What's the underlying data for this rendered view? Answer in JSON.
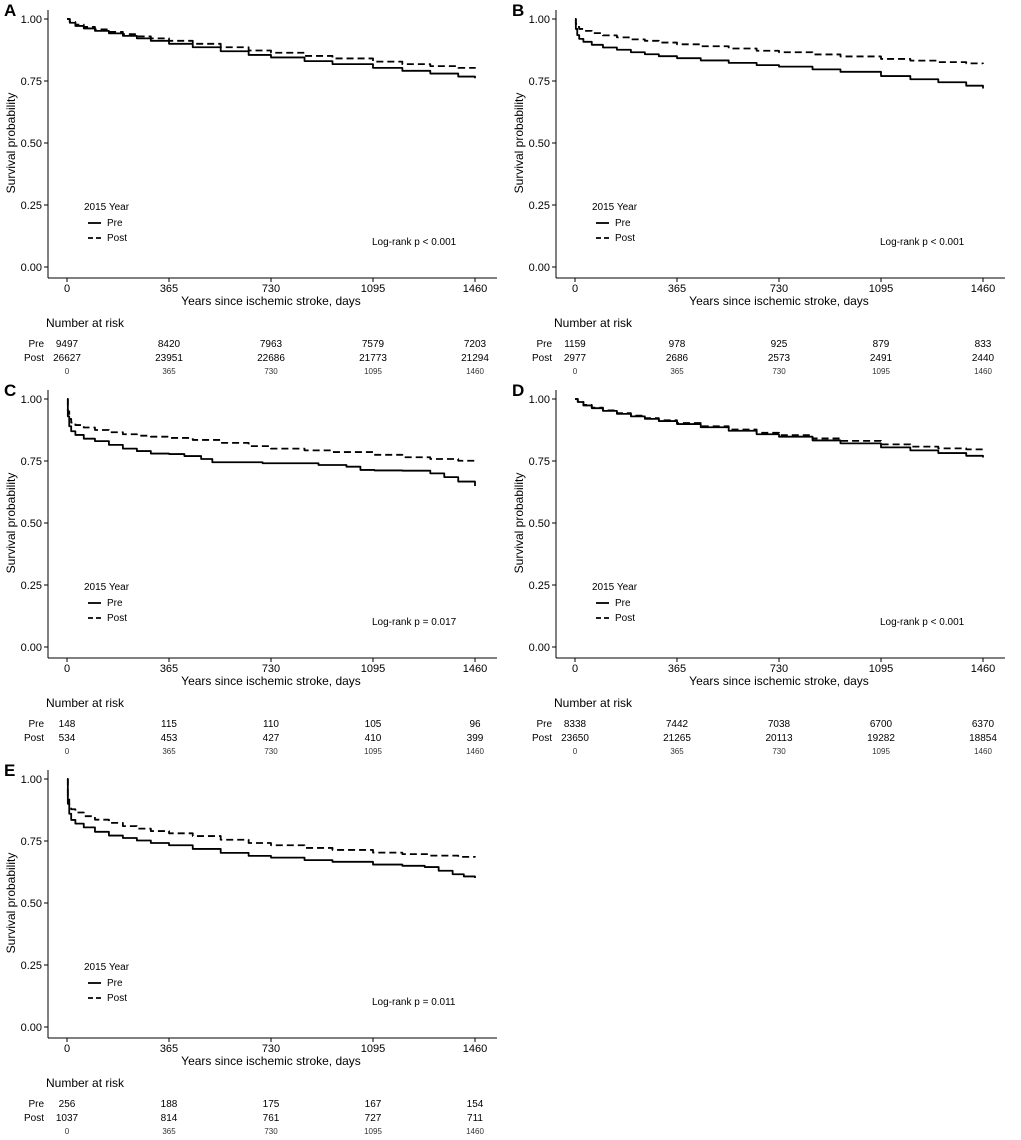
{
  "chart_data": [
    {
      "panel": "A",
      "type": "line",
      "ylabel": "Survival probability",
      "xlabel": "Years since ischemic stroke, days",
      "x_ticks": [
        "0",
        "365",
        "730",
        "1095",
        "1460"
      ],
      "y_ticks": [
        "0.00",
        "0.25",
        "0.50",
        "0.75",
        "1.00"
      ],
      "xlim": [
        0,
        1460
      ],
      "ylim": [
        0,
        1
      ],
      "legend_title": "2015 Year",
      "annotation": "Log-rank p < 0.001",
      "series": [
        {
          "name": "Pre",
          "style": "solid",
          "x": [
            0,
            10,
            30,
            60,
            100,
            150,
            200,
            250,
            300,
            365,
            450,
            550,
            650,
            730,
            850,
            950,
            1095,
            1200,
            1300,
            1400,
            1460
          ],
          "y": [
            1.0,
            0.985,
            0.972,
            0.962,
            0.952,
            0.942,
            0.932,
            0.922,
            0.912,
            0.9,
            0.886,
            0.87,
            0.855,
            0.845,
            0.83,
            0.818,
            0.803,
            0.791,
            0.78,
            0.768,
            0.761
          ]
        },
        {
          "name": "Post",
          "style": "dashed",
          "x": [
            0,
            10,
            30,
            60,
            100,
            150,
            200,
            250,
            300,
            365,
            450,
            550,
            650,
            730,
            850,
            950,
            1095,
            1200,
            1300,
            1400,
            1460
          ],
          "y": [
            1.0,
            0.988,
            0.977,
            0.968,
            0.958,
            0.948,
            0.939,
            0.93,
            0.922,
            0.912,
            0.9,
            0.886,
            0.873,
            0.864,
            0.851,
            0.841,
            0.828,
            0.818,
            0.81,
            0.803,
            0.8
          ]
        }
      ],
      "risk_table": {
        "title": "Number at risk",
        "row_labels": [
          "Pre",
          "Post"
        ],
        "rows": [
          [
            "9497",
            "8420",
            "7963",
            "7579",
            "7203"
          ],
          [
            "26627",
            "23951",
            "22686",
            "21773",
            "21294"
          ]
        ],
        "times": [
          "0",
          "365",
          "730",
          "1095",
          "1460"
        ]
      }
    },
    {
      "panel": "B",
      "type": "line",
      "ylabel": "Survival probability",
      "xlabel": "Years since ischemic stroke, days",
      "x_ticks": [
        "0",
        "365",
        "730",
        "1095",
        "1460"
      ],
      "y_ticks": [
        "0.00",
        "0.25",
        "0.50",
        "0.75",
        "1.00"
      ],
      "xlim": [
        0,
        1460
      ],
      "ylim": [
        0,
        1
      ],
      "legend_title": "2015 Year",
      "annotation": "Log-rank p < 0.001",
      "series": [
        {
          "name": "Pre",
          "style": "solid",
          "x": [
            0,
            3,
            8,
            15,
            30,
            60,
            100,
            150,
            200,
            250,
            300,
            365,
            450,
            550,
            650,
            730,
            850,
            950,
            1095,
            1200,
            1300,
            1400,
            1460
          ],
          "y": [
            1.0,
            0.96,
            0.935,
            0.92,
            0.908,
            0.896,
            0.885,
            0.876,
            0.866,
            0.858,
            0.85,
            0.842,
            0.833,
            0.823,
            0.814,
            0.808,
            0.797,
            0.787,
            0.77,
            0.757,
            0.745,
            0.731,
            0.72
          ]
        },
        {
          "name": "Post",
          "style": "dashed",
          "x": [
            0,
            3,
            8,
            15,
            30,
            60,
            100,
            150,
            200,
            250,
            300,
            365,
            450,
            550,
            650,
            730,
            850,
            950,
            1095,
            1200,
            1300,
            1400,
            1460
          ],
          "y": [
            1.0,
            0.98,
            0.968,
            0.96,
            0.952,
            0.943,
            0.934,
            0.926,
            0.918,
            0.912,
            0.905,
            0.898,
            0.89,
            0.881,
            0.872,
            0.866,
            0.857,
            0.849,
            0.839,
            0.832,
            0.826,
            0.821,
            0.819
          ]
        }
      ],
      "risk_table": {
        "title": "Number at risk",
        "row_labels": [
          "Pre",
          "Post"
        ],
        "rows": [
          [
            "1159",
            "978",
            "925",
            "879",
            "833"
          ],
          [
            "2977",
            "2686",
            "2573",
            "2491",
            "2440"
          ]
        ],
        "times": [
          "0",
          "365",
          "730",
          "1095",
          "1460"
        ]
      }
    },
    {
      "panel": "C",
      "type": "line",
      "ylabel": "Survival probability",
      "xlabel": "Years since ischemic stroke, days",
      "x_ticks": [
        "0",
        "365",
        "730",
        "1095",
        "1460"
      ],
      "y_ticks": [
        "0.00",
        "0.25",
        "0.50",
        "0.75",
        "1.00"
      ],
      "xlim": [
        0,
        1460
      ],
      "ylim": [
        0,
        1
      ],
      "legend_title": "2015 Year",
      "annotation": "Log-rank p = 0.017",
      "series": [
        {
          "name": "Pre",
          "style": "solid",
          "x": [
            0,
            3,
            8,
            15,
            30,
            60,
            100,
            150,
            200,
            250,
            300,
            365,
            420,
            480,
            520,
            600,
            700,
            800,
            900,
            1000,
            1050,
            1100,
            1200,
            1300,
            1350,
            1400,
            1460
          ],
          "y": [
            1.0,
            0.93,
            0.89,
            0.87,
            0.855,
            0.84,
            0.83,
            0.815,
            0.8,
            0.79,
            0.78,
            0.778,
            0.77,
            0.758,
            0.745,
            0.745,
            0.741,
            0.741,
            0.734,
            0.727,
            0.714,
            0.712,
            0.711,
            0.7,
            0.685,
            0.667,
            0.649
          ]
        },
        {
          "name": "Post",
          "style": "dashed",
          "x": [
            0,
            3,
            8,
            15,
            30,
            60,
            100,
            150,
            200,
            250,
            300,
            365,
            450,
            550,
            650,
            730,
            850,
            950,
            1095,
            1200,
            1300,
            1400,
            1460
          ],
          "y": [
            1.0,
            0.95,
            0.92,
            0.905,
            0.895,
            0.885,
            0.875,
            0.866,
            0.858,
            0.852,
            0.848,
            0.843,
            0.835,
            0.823,
            0.81,
            0.8,
            0.793,
            0.786,
            0.775,
            0.765,
            0.758,
            0.751,
            0.747
          ]
        }
      ],
      "risk_table": {
        "title": "Number at risk",
        "row_labels": [
          "Pre",
          "Post"
        ],
        "rows": [
          [
            "148",
            "115",
            "110",
            "105",
            "96"
          ],
          [
            "534",
            "453",
            "427",
            "410",
            "399"
          ]
        ],
        "times": [
          "0",
          "365",
          "730",
          "1095",
          "1460"
        ]
      }
    },
    {
      "panel": "D",
      "type": "line",
      "ylabel": "Survival probability",
      "xlabel": "Years since ischemic stroke, days",
      "x_ticks": [
        "0",
        "365",
        "730",
        "1095",
        "1460"
      ],
      "y_ticks": [
        "0.00",
        "0.25",
        "0.50",
        "0.75",
        "1.00"
      ],
      "xlim": [
        0,
        1460
      ],
      "ylim": [
        0,
        1
      ],
      "legend_title": "2015 Year",
      "annotation": "Log-rank p < 0.001",
      "series": [
        {
          "name": "Pre",
          "style": "solid",
          "x": [
            0,
            10,
            30,
            60,
            100,
            150,
            200,
            250,
            300,
            365,
            450,
            550,
            650,
            730,
            850,
            950,
            1095,
            1200,
            1300,
            1400,
            1460
          ],
          "y": [
            1.0,
            0.988,
            0.974,
            0.963,
            0.952,
            0.94,
            0.93,
            0.92,
            0.911,
            0.899,
            0.886,
            0.872,
            0.858,
            0.848,
            0.833,
            0.821,
            0.805,
            0.793,
            0.782,
            0.771,
            0.764
          ]
        },
        {
          "name": "Post",
          "style": "dashed",
          "x": [
            0,
            10,
            30,
            60,
            100,
            150,
            200,
            250,
            300,
            365,
            450,
            550,
            650,
            730,
            850,
            950,
            1095,
            1200,
            1300,
            1400,
            1460
          ],
          "y": [
            1.0,
            0.989,
            0.976,
            0.965,
            0.954,
            0.943,
            0.933,
            0.923,
            0.914,
            0.903,
            0.89,
            0.877,
            0.864,
            0.854,
            0.841,
            0.831,
            0.817,
            0.808,
            0.801,
            0.797,
            0.795
          ]
        }
      ],
      "risk_table": {
        "title": "Number at risk",
        "row_labels": [
          "Pre",
          "Post"
        ],
        "rows": [
          [
            "8338",
            "7442",
            "7038",
            "6700",
            "6370"
          ],
          [
            "23650",
            "21265",
            "20113",
            "19282",
            "18854"
          ]
        ],
        "times": [
          "0",
          "365",
          "730",
          "1095",
          "1460"
        ]
      }
    },
    {
      "panel": "E",
      "type": "line",
      "ylabel": "Survival probability",
      "xlabel": "Years since ischemic stroke, days",
      "x_ticks": [
        "0",
        "365",
        "730",
        "1095",
        "1460"
      ],
      "y_ticks": [
        "0.00",
        "0.25",
        "0.50",
        "0.75",
        "1.00"
      ],
      "xlim": [
        0,
        1460
      ],
      "ylim": [
        0,
        1
      ],
      "legend_title": "2015 Year",
      "annotation": "Log-rank p = 0.011",
      "series": [
        {
          "name": "Pre",
          "style": "solid",
          "x": [
            0,
            3,
            8,
            15,
            30,
            60,
            100,
            150,
            200,
            250,
            300,
            365,
            450,
            550,
            650,
            730,
            850,
            950,
            1095,
            1200,
            1280,
            1330,
            1380,
            1420,
            1460
          ],
          "y": [
            1.0,
            0.9,
            0.86,
            0.835,
            0.82,
            0.805,
            0.787,
            0.772,
            0.762,
            0.752,
            0.742,
            0.733,
            0.718,
            0.702,
            0.69,
            0.683,
            0.673,
            0.666,
            0.655,
            0.65,
            0.645,
            0.63,
            0.616,
            0.607,
            0.601
          ]
        },
        {
          "name": "Post",
          "style": "dashed",
          "x": [
            0,
            3,
            8,
            15,
            30,
            60,
            100,
            150,
            200,
            250,
            300,
            365,
            450,
            550,
            650,
            730,
            850,
            950,
            1095,
            1200,
            1300,
            1400,
            1460
          ],
          "y": [
            1.0,
            0.93,
            0.895,
            0.878,
            0.865,
            0.85,
            0.836,
            0.823,
            0.81,
            0.8,
            0.79,
            0.781,
            0.77,
            0.755,
            0.742,
            0.733,
            0.722,
            0.714,
            0.703,
            0.697,
            0.691,
            0.686,
            0.684
          ]
        }
      ],
      "risk_table": {
        "title": "Number at risk",
        "row_labels": [
          "Pre",
          "Post"
        ],
        "rows": [
          [
            "256",
            "188",
            "175",
            "167",
            "154"
          ],
          [
            "1037",
            "814",
            "761",
            "727",
            "711"
          ]
        ],
        "times": [
          "0",
          "365",
          "730",
          "1095",
          "1460"
        ]
      }
    }
  ]
}
